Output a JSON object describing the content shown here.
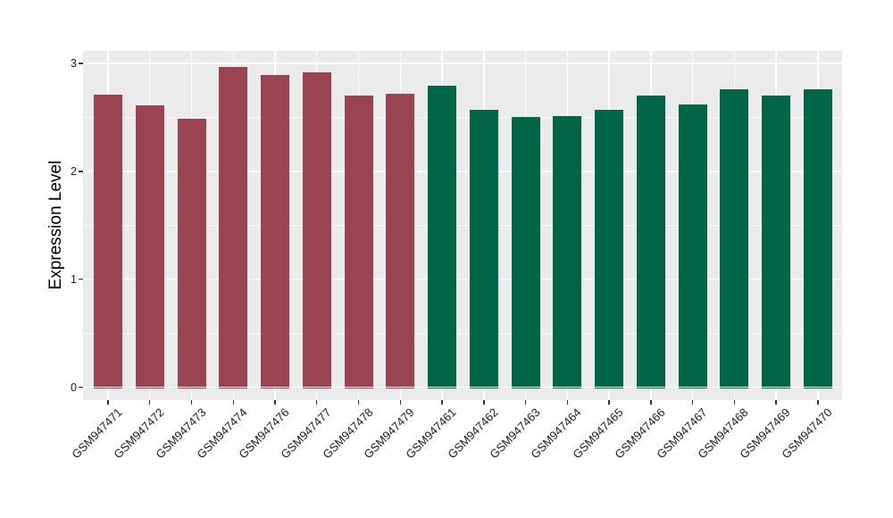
{
  "figure": {
    "background_color": "#FFFFFF",
    "panel_background_color": "#EBEBEB",
    "grid_color": "#FFFFFF",
    "tick_color": "#333333",
    "axis_text_color": "#1A1A1A",
    "y_axis_title": "Expression Level"
  },
  "chart_data": {
    "type": "bar",
    "title": "",
    "xlabel": "",
    "ylabel": "Expression Level",
    "ylim": [
      0,
      3.1
    ],
    "y_major_ticks": [
      0,
      1,
      2,
      3
    ],
    "y_minor_ticks": [
      0.5,
      1.5,
      2.5
    ],
    "grid": "on",
    "legend_position": "none",
    "group_colors": {
      "group1": "#9B4451",
      "group2": "#006647"
    },
    "categories": [
      "GSM947471",
      "GSM947472",
      "GSM947473",
      "GSM947474",
      "GSM947476",
      "GSM947477",
      "GSM947478",
      "GSM947479",
      "GSM947461",
      "GSM947462",
      "GSM947463",
      "GSM947464",
      "GSM947465",
      "GSM947466",
      "GSM947467",
      "GSM947468",
      "GSM947469",
      "GSM947470"
    ],
    "bars": [
      {
        "label": "GSM947471",
        "value": 2.71,
        "group": "group1"
      },
      {
        "label": "GSM947472",
        "value": 2.61,
        "group": "group1"
      },
      {
        "label": "GSM947473",
        "value": 2.49,
        "group": "group1"
      },
      {
        "label": "GSM947474",
        "value": 2.97,
        "group": "group1"
      },
      {
        "label": "GSM947476",
        "value": 2.89,
        "group": "group1"
      },
      {
        "label": "GSM947477",
        "value": 2.92,
        "group": "group1"
      },
      {
        "label": "GSM947478",
        "value": 2.7,
        "group": "group1"
      },
      {
        "label": "GSM947479",
        "value": 2.72,
        "group": "group1"
      },
      {
        "label": "GSM947461",
        "value": 2.79,
        "group": "group2"
      },
      {
        "label": "GSM947462",
        "value": 2.57,
        "group": "group2"
      },
      {
        "label": "GSM947463",
        "value": 2.5,
        "group": "group2"
      },
      {
        "label": "GSM947464",
        "value": 2.51,
        "group": "group2"
      },
      {
        "label": "GSM947465",
        "value": 2.57,
        "group": "group2"
      },
      {
        "label": "GSM947466",
        "value": 2.7,
        "group": "group2"
      },
      {
        "label": "GSM947467",
        "value": 2.62,
        "group": "group2"
      },
      {
        "label": "GSM947468",
        "value": 2.76,
        "group": "group2"
      },
      {
        "label": "GSM947469",
        "value": 2.7,
        "group": "group2"
      },
      {
        "label": "GSM947470",
        "value": 2.76,
        "group": "group2"
      }
    ]
  }
}
